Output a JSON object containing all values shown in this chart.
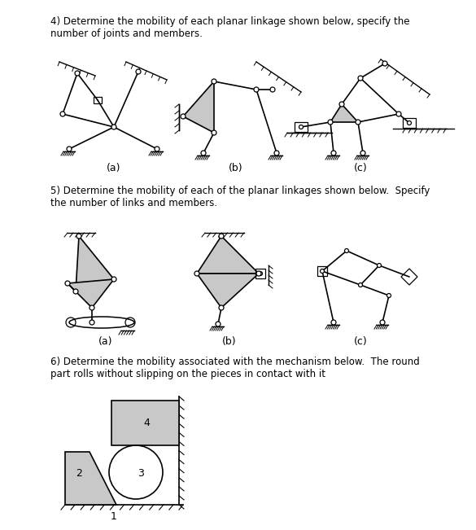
{
  "title4": "4) Determine the mobility of each planar linkage shown below, specify the\nnumber of joints and members.",
  "title5": "5) Determine the mobility of each of the planar linkages shown below.  Specify\nthe number of links and members.",
  "title6": "6) Determine the mobility associated with the mechanism below.  The round\npart rolls without slipping on the pieces in contact with it",
  "label_a": "(a)",
  "label_b": "(b)",
  "label_c": "(c)",
  "label_1": "1",
  "label_2": "2",
  "label_3": "3",
  "label_4": "4",
  "bg_color": "#ffffff",
  "link_color": "#000000",
  "fill_gray": "#c8c8c8",
  "text_color": "#000000",
  "lw": 1.2
}
